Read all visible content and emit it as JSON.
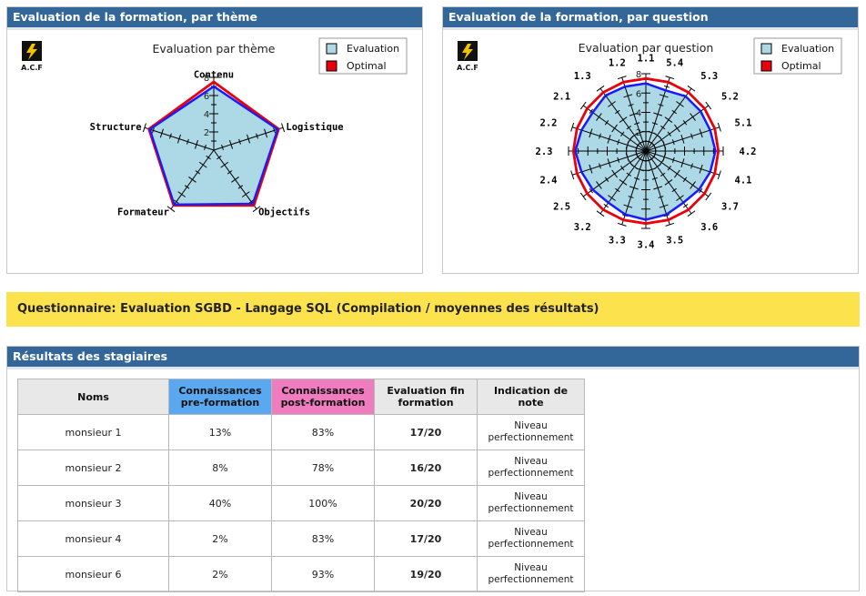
{
  "panels": {
    "theme_title": "Evaluation de la formation, par thème",
    "question_title": "Evaluation de la formation, par question",
    "results_title": "Résultats des stagiaires"
  },
  "logo": {
    "text": "A.C.F",
    "colors": {
      "yellow": "#f2c200",
      "black": "#111111"
    }
  },
  "banner": {
    "text": "Questionnaire: Evaluation SGBD - Langage SQL (Compilation / moyennes des résultats)",
    "color": "#fce34e"
  },
  "chart_data": [
    {
      "type": "radar",
      "title": "Evaluation par thème",
      "axes": [
        "Contenu",
        "Logistique",
        "Objectifs",
        "Formateur",
        "Structure"
      ],
      "range": [
        0,
        8
      ],
      "tick_labels": [
        "2",
        "4",
        "6",
        "8"
      ],
      "series": [
        {
          "name": "Evaluation",
          "values": [
            7.0,
            7.4,
            7.3,
            7.4,
            7.4
          ],
          "color": "#add8e6",
          "stroke": "#1a1aff"
        },
        {
          "name": "Optimal",
          "values": [
            7.5,
            7.5,
            7.5,
            7.5,
            7.5
          ],
          "color": "#e8000b"
        }
      ],
      "legend": "top-right"
    },
    {
      "type": "radar",
      "title": "Evaluation par question",
      "axes": [
        "1.1",
        "5.4",
        "5.3",
        "5.2",
        "5.1",
        "4.2",
        "4.1",
        "3.7",
        "3.6",
        "3.5",
        "3.4",
        "3.3",
        "3.2",
        "2.5",
        "2.4",
        "2.3",
        "2.2",
        "2.1",
        "1.3",
        "1.2"
      ],
      "range": [
        0,
        8
      ],
      "tick_labels": [
        "2",
        "4",
        "6",
        "8"
      ],
      "series": [
        {
          "name": "Evaluation",
          "values": [
            7.0,
            6.6,
            7.0,
            7.0,
            7.0,
            7.2,
            7.0,
            6.8,
            6.6,
            6.9,
            7.1,
            6.9,
            6.6,
            6.8,
            7.0,
            7.3,
            7.0,
            6.8,
            7.1,
            7.0
          ],
          "color": "#add8e6",
          "stroke": "#1a1aff"
        },
        {
          "name": "Optimal",
          "values": [
            7.5,
            7.5,
            7.5,
            7.5,
            7.5,
            7.5,
            7.5,
            7.5,
            7.5,
            7.5,
            7.5,
            7.5,
            7.5,
            7.5,
            7.5,
            7.5,
            7.5,
            7.5,
            7.5,
            7.5
          ],
          "color": "#e8000b"
        }
      ],
      "legend": "top-right"
    }
  ],
  "results": {
    "headers": {
      "noms": "Noms",
      "pre": [
        "Connaissances",
        "pre-formation"
      ],
      "post": [
        "Connaissances",
        "post-formation"
      ],
      "eval": [
        "Evaluation fin",
        "formation"
      ],
      "note": [
        "Indication de",
        "note"
      ]
    },
    "rows": [
      {
        "nom": "monsieur 1",
        "pre": "13%",
        "post": "83%",
        "eval": "17/20",
        "note": [
          "Niveau",
          "perfectionnement"
        ]
      },
      {
        "nom": "monsieur 2",
        "pre": "8%",
        "post": "78%",
        "eval": "16/20",
        "note": [
          "Niveau",
          "perfectionnement"
        ]
      },
      {
        "nom": "monsieur 3",
        "pre": "40%",
        "post": "100%",
        "eval": "20/20",
        "note": [
          "Niveau",
          "perfectionnement"
        ]
      },
      {
        "nom": "monsieur 4",
        "pre": "2%",
        "post": "83%",
        "eval": "17/20",
        "note": [
          "Niveau",
          "perfectionnement"
        ]
      },
      {
        "nom": "monsieur 6",
        "pre": "2%",
        "post": "93%",
        "eval": "19/20",
        "note": [
          "Niveau",
          "perfectionnement"
        ]
      }
    ]
  }
}
